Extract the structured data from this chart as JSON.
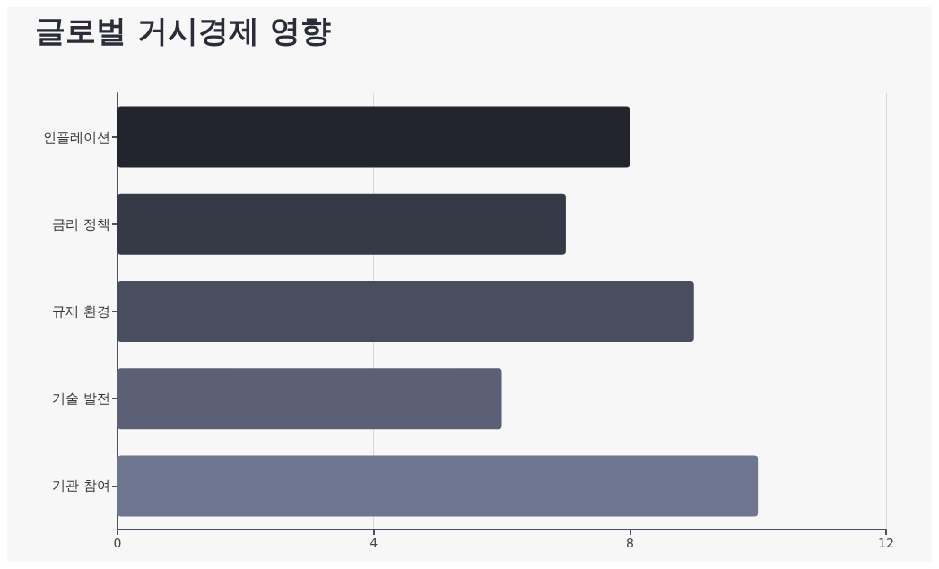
{
  "chart_data": {
    "type": "bar",
    "orientation": "horizontal",
    "title": "글로벌 거시경제 영향",
    "categories": [
      "인플레이션",
      "금리 정책",
      "규제 환경",
      "기술 발전",
      "기관 참여"
    ],
    "values": [
      8,
      7,
      9,
      6,
      10
    ],
    "colors": [
      "#22252e",
      "#363a47",
      "#494e5f",
      "#5b6076",
      "#6f7690"
    ],
    "xlim": [
      0,
      12
    ],
    "xticks": [
      0,
      4,
      8,
      12
    ],
    "grid": "x"
  }
}
